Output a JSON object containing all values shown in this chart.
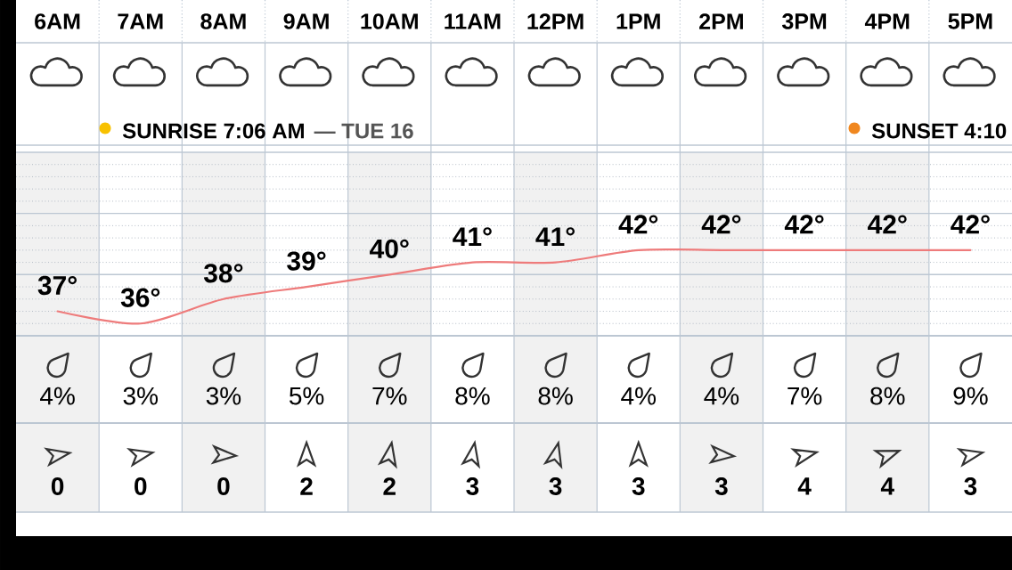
{
  "chart_data": [
    {
      "type": "line",
      "categories": [
        "6AM",
        "7AM",
        "8AM",
        "9AM",
        "10AM",
        "11AM",
        "12PM",
        "1PM",
        "2PM",
        "3PM",
        "4PM",
        "5PM"
      ],
      "series": [
        {
          "color": "#ee7b7b",
          "values": [
            37,
            36,
            38,
            39,
            40,
            41,
            41,
            42,
            42,
            42,
            42,
            42
          ],
          "value_labels": [
            "37°",
            "36°",
            "38°",
            "39°",
            "40°",
            "41°",
            "41°",
            "42°",
            "42°",
            "42°",
            "42°",
            "42°"
          ]
        }
      ],
      "ylim": [
        35,
        50
      ],
      "yticks": [
        {
          "value": 35,
          "label": null
        },
        {
          "value": 40,
          "label": null
        },
        {
          "value": 45,
          "label": null
        },
        {
          "value": 50,
          "label": null
        }
      ],
      "grid": true,
      "tick_labels": "x",
      "annotations": [
        "SUNRISE 7:06 AM",
        "— TUE 16",
        "SUNSET 4:10"
      ]
    },
    {
      "type": "other",
      "annotations": [
        "4%",
        "3%",
        "3%",
        "5%",
        "7%",
        "8%",
        "8%",
        "4%",
        "4%",
        "7%",
        "8%",
        "9%"
      ]
    },
    {
      "type": "other",
      "annotations": [
        "0",
        "0",
        "0",
        "2",
        "2",
        "3",
        "3",
        "3",
        "3",
        "4",
        "4",
        "3"
      ]
    }
  ]
}
